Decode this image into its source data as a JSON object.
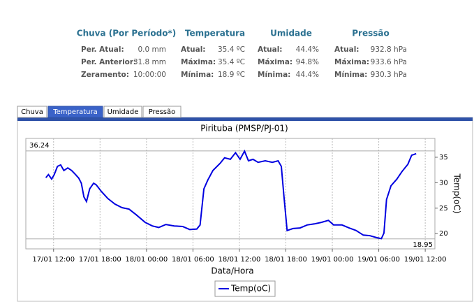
{
  "stats": [
    {
      "title": "Chuva (Por Período*)",
      "rows": [
        [
          "Per. Atual:",
          "0.0 mm"
        ],
        [
          "Per. Anterior:",
          "31.8 mm"
        ],
        [
          "Zeramento:",
          "10:00:00"
        ]
      ]
    },
    {
      "title": "Temperatura",
      "rows": [
        [
          "Atual:",
          "35.4 ºC"
        ],
        [
          "Máxima:",
          "35.4 ºC"
        ],
        [
          "Mínima:",
          "18.9 ºC"
        ]
      ]
    },
    {
      "title": "Umidade",
      "rows": [
        [
          "Atual:",
          "44.4%"
        ],
        [
          "Máxima:",
          "94.8%"
        ],
        [
          "Mínima:",
          "44.4%"
        ]
      ]
    },
    {
      "title": "Pressão",
      "rows": [
        [
          "Atual:",
          "932.8 hPa"
        ],
        [
          "Máxima:",
          "933.6 hPa"
        ],
        [
          "Mínima:",
          "930.3 hPa"
        ]
      ]
    }
  ],
  "tabs": {
    "items": [
      "Chuva",
      "Temperatura",
      "Umidade",
      "Pressão"
    ],
    "active": 1
  },
  "chart_data": {
    "type": "line",
    "title": "Pirituba (PMSP/PJ-01)",
    "x_label": "Data/Hora",
    "y_label": "Temp(oC)",
    "x": [
      "17/01 11:00",
      "17/01 11:20",
      "17/01 11:45",
      "17/01 12:05",
      "17/01 12:30",
      "17/01 12:55",
      "17/01 13:20",
      "17/01 13:50",
      "17/01 14:20",
      "17/01 14:50",
      "17/01 15:15",
      "17/01 15:35",
      "17/01 15:55",
      "17/01 16:15",
      "17/01 16:40",
      "17/01 17:10",
      "17/01 17:30",
      "17/01 18:10",
      "17/01 19:00",
      "17/01 19:55",
      "17/01 20:50",
      "17/01 21:45",
      "17/01 22:40",
      "17/01 23:50",
      "18/01 00:45",
      "18/01 01:35",
      "18/01 02:30",
      "18/01 03:35",
      "18/01 04:40",
      "18/01 05:35",
      "18/01 06:30",
      "18/01 06:55",
      "18/01 07:25",
      "18/01 07:55",
      "18/01 08:35",
      "18/01 09:30",
      "18/01 10:05",
      "18/01 10:50",
      "18/01 11:30",
      "18/01 12:05",
      "18/01 12:40",
      "18/01 13:10",
      "18/01 13:45",
      "18/01 14:25",
      "18/01 15:20",
      "18/01 16:15",
      "18/01 17:00",
      "18/01 17:25",
      "18/01 17:45",
      "18/01 18:10",
      "18/01 18:55",
      "18/01 19:50",
      "18/01 20:45",
      "18/01 21:40",
      "18/01 22:35",
      "18/01 23:30",
      "19/01 00:10",
      "19/01 01:15",
      "19/01 02:10",
      "19/01 03:05",
      "19/01 04:00",
      "19/01 04:50",
      "19/01 05:45",
      "19/01 06:20",
      "19/01 06:40",
      "19/01 07:00",
      "19/01 07:35",
      "19/01 08:20",
      "19/01 09:00",
      "19/01 09:45",
      "19/01 10:15",
      "19/01 10:50"
    ],
    "series": [
      {
        "name": "Temp(oC)",
        "color": "#0000e0",
        "values": [
          31.0,
          31.6,
          30.7,
          31.6,
          33.2,
          33.5,
          32.4,
          32.9,
          32.4,
          31.6,
          30.9,
          29.9,
          27.2,
          26.3,
          28.8,
          29.9,
          29.6,
          28.3,
          26.9,
          25.8,
          25.1,
          24.8,
          23.7,
          22.2,
          21.5,
          21.2,
          21.8,
          21.5,
          21.4,
          20.8,
          20.9,
          21.7,
          28.8,
          30.5,
          32.4,
          33.8,
          34.9,
          34.6,
          35.9,
          34.6,
          36.2,
          34.3,
          34.6,
          34.0,
          34.3,
          34.0,
          34.3,
          33.2,
          27.4,
          20.6,
          21.0,
          21.1,
          21.7,
          21.9,
          22.2,
          22.6,
          21.7,
          21.7,
          21.1,
          20.6,
          19.7,
          19.6,
          19.2,
          19.0,
          20.1,
          26.7,
          29.4,
          30.7,
          32.2,
          33.6,
          35.4,
          35.7
        ]
      }
    ],
    "xlim": [
      "17/01 08:25",
      "19/01 13:15"
    ],
    "xticks": [
      "17/01 12:00",
      "17/01 18:00",
      "18/01 00:00",
      "18/01 06:00",
      "18/01 12:00",
      "18/01 18:00",
      "19/01 00:00",
      "19/01 06:00",
      "19/01 12:00"
    ],
    "ylim": [
      17.0,
      38.7
    ],
    "yticks": [
      20,
      25,
      30,
      35
    ],
    "max_line": 36.24,
    "min_line": 18.95,
    "grid": "x"
  }
}
